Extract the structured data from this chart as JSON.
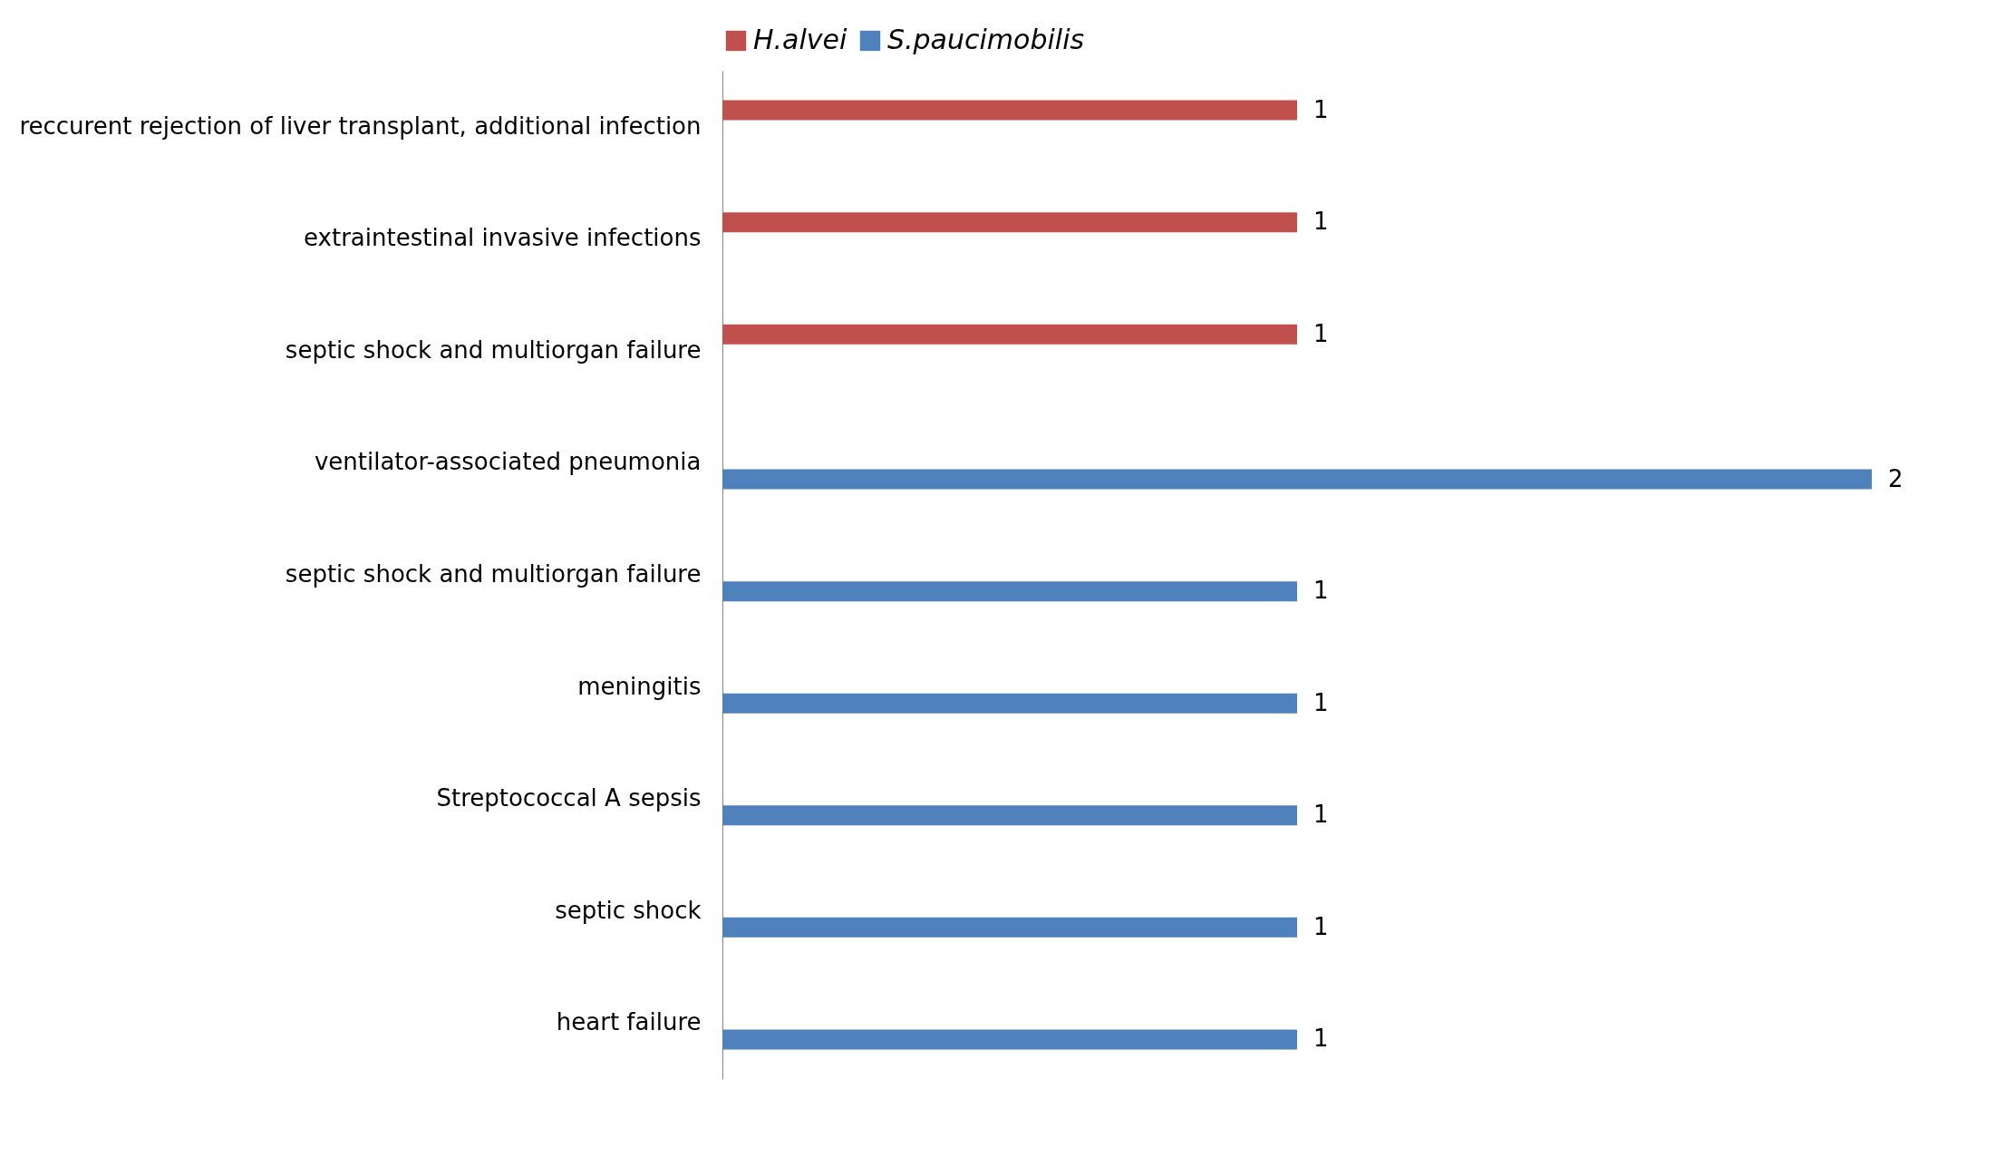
{
  "chart_data": {
    "type": "bar",
    "orientation": "horizontal",
    "categories": [
      "reccurent rejection of liver transplant, additional infection",
      "extraintestinal invasive infections",
      "septic shock and multiorgan failure",
      "ventilator-associated pneumonia",
      "septic shock and multiorgan failure",
      "meningitis",
      "Streptococcal A sepsis",
      "septic shock",
      "heart failure"
    ],
    "series": [
      {
        "name": "H.alvei",
        "color": "#c0504d",
        "values": [
          1,
          1,
          1,
          null,
          null,
          null,
          null,
          null,
          null
        ]
      },
      {
        "name": "S.paucimobilis",
        "color": "#4f81bd",
        "values": [
          null,
          null,
          null,
          2,
          1,
          1,
          1,
          1,
          1
        ]
      }
    ],
    "data_labels": true,
    "legend": "top"
  }
}
